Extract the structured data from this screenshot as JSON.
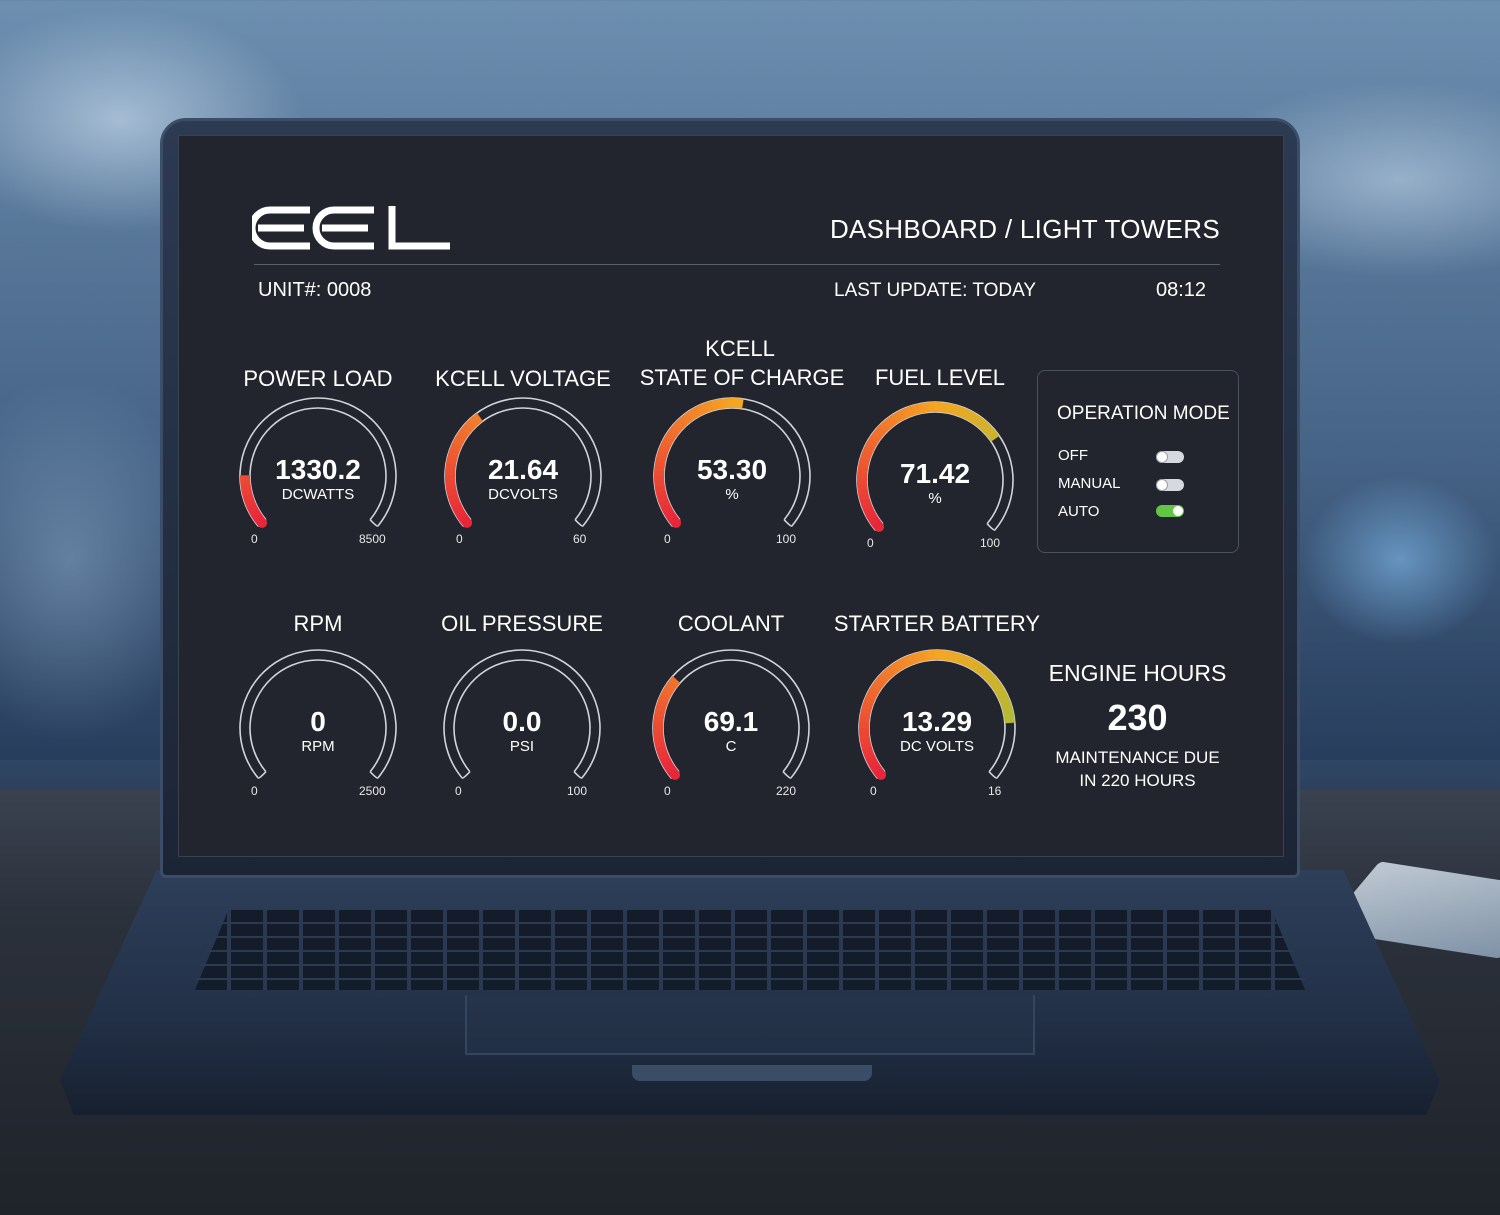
{
  "header": {
    "logo_text": "EEL",
    "title": "DASHBOARD / LIGHT TOWERS",
    "unit": "UNIT#: 0008",
    "last_update": "LAST UPDATE: TODAY",
    "time": "08:12"
  },
  "gauges": [
    {
      "id": "power-load",
      "title": "POWER LOAD",
      "value": "1330.2",
      "unit": "DCWATTS",
      "min": "0",
      "max": "8500",
      "fraction": 0.156,
      "colored": true
    },
    {
      "id": "kcell-voltage",
      "title": "KCELL VOLTAGE",
      "value": "21.64",
      "unit": "DCVOLTS",
      "min": "0",
      "max": "60",
      "fraction": 0.361,
      "colored": true
    },
    {
      "id": "kcell-soc",
      "title": "KCELL\nSTATE OF CHARGE",
      "title_line1": "KCELL",
      "title_line2": "STATE OF CHARGE",
      "value": "53.30",
      "unit": "%",
      "min": "0",
      "max": "100",
      "fraction": 0.533,
      "colored": true
    },
    {
      "id": "fuel-level",
      "title": "FUEL LEVEL",
      "value": "71.42",
      "unit": "%",
      "min": "0",
      "max": "100",
      "fraction": 0.714,
      "colored": true
    },
    {
      "id": "rpm",
      "title": "RPM",
      "value": "0",
      "unit": "RPM",
      "min": "0",
      "max": "2500",
      "fraction": 0,
      "colored": false
    },
    {
      "id": "oil-pressure",
      "title": "OIL PRESSURE",
      "value": "0.0",
      "unit": "PSI",
      "min": "0",
      "max": "100",
      "fraction": 0,
      "colored": false
    },
    {
      "id": "coolant",
      "title": "COOLANT",
      "value": "69.1",
      "unit": "C",
      "min": "0",
      "max": "220",
      "fraction": 0.314,
      "colored": true
    },
    {
      "id": "starter-battery",
      "title": "STARTER BATTERY",
      "value": "13.29",
      "unit": "DC VOLTS",
      "min": "0",
      "max": "16",
      "fraction": 0.831,
      "colored": true
    }
  ],
  "operation_mode": {
    "title": "OPERATION MODE",
    "options": [
      {
        "label": "OFF",
        "on": false
      },
      {
        "label": "MANUAL",
        "on": false
      },
      {
        "label": "AUTO",
        "on": true
      }
    ],
    "active_color": "#62c545"
  },
  "engine": {
    "title": "ENGINE HOURS",
    "hours": "230",
    "note_line1": "MAINTENANCE DUE",
    "note_line2": "IN 220 HOURS"
  },
  "colors": {
    "screen_bg": "#22252e",
    "gauge_track": "#d0d3da",
    "arc_low": "#e8263a",
    "arc_mid": "#f5a623",
    "arc_high": "#8cc63f"
  }
}
